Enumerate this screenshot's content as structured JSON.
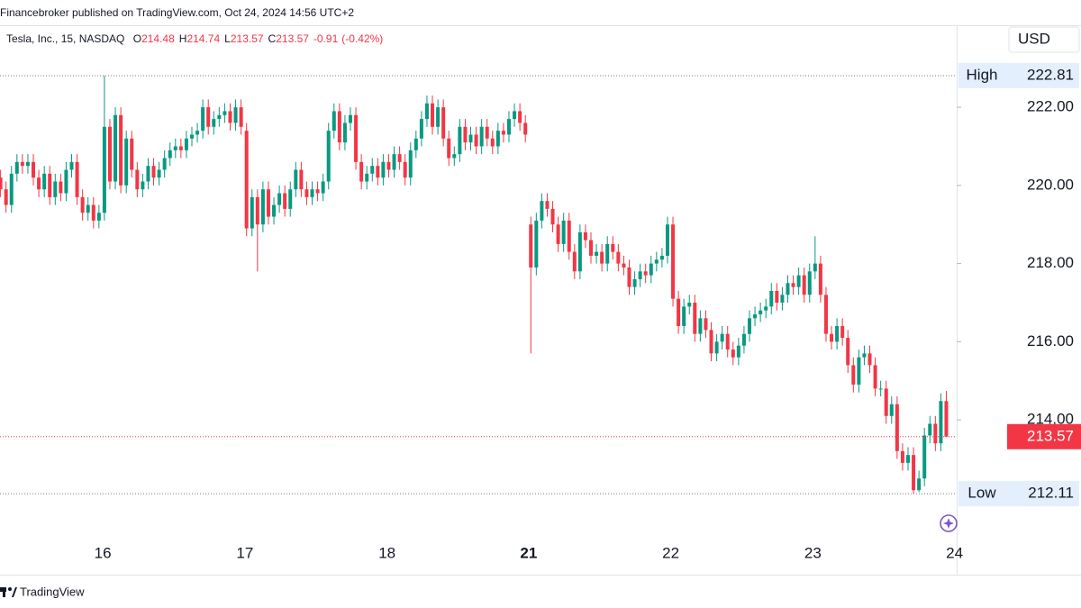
{
  "header": "Financebroker published on TradingView.com, Oct 24, 2024 14:56 UTC+2",
  "footer": "TradingView",
  "chart_data": {
    "type": "candlestick",
    "legend": {
      "symbol": "Tesla, Inc., 15, NASDAQ",
      "fields": [
        {
          "key": "O",
          "value": 214.48
        },
        {
          "key": "H",
          "value": 214.74
        },
        {
          "key": "L",
          "value": 213.57
        },
        {
          "key": "C",
          "value": 213.57
        }
      ],
      "change": -0.91,
      "change_pct": {
        "value": -0.42,
        "label": "(-0.42%)"
      }
    },
    "currency": "USD",
    "high_marker": {
      "label": "High",
      "value": 222.81
    },
    "low_marker": {
      "label": "Low",
      "value": 212.11
    },
    "last": 213.57,
    "up_color": "#089981",
    "down_color": "#f23645",
    "grid": false,
    "ylim": [
      210.96,
      224.1
    ],
    "yticks": [
      {
        "value": 214,
        "label": "214.00"
      },
      {
        "value": 216,
        "label": "216.00"
      },
      {
        "value": 218,
        "label": "218.00"
      },
      {
        "value": 220,
        "label": "220.00"
      },
      {
        "value": 222,
        "label": "222.00"
      }
    ],
    "xlim": [
      -0.1,
      174.9
    ],
    "xticks": [
      {
        "value": 18.7,
        "label": "16"
      },
      {
        "value": 44.7,
        "label": "17"
      },
      {
        "value": 70.7,
        "label": "18"
      },
      {
        "value": 96.6,
        "label": "21",
        "bold": true
      },
      {
        "value": 122.6,
        "label": "22"
      },
      {
        "value": 148.6,
        "label": "23"
      },
      {
        "value": 174.5,
        "label": "24"
      }
    ],
    "open": [
      220.2,
      219.9,
      219.5,
      220.3,
      220.6,
      220.5,
      220.6,
      220.2,
      219.9,
      220.3,
      219.7,
      220.1,
      219.8,
      220.4,
      220.6,
      219.7,
      219.3,
      219.5,
      219.1,
      219.3,
      221.5,
      220.1,
      221.8,
      220.0,
      221.2,
      220.4,
      219.9,
      220.1,
      220.5,
      220.2,
      220.4,
      220.7,
      220.9,
      221.0,
      220.9,
      221.2,
      221.3,
      221.4,
      222.0,
      221.5,
      221.7,
      221.8,
      221.9,
      221.6,
      222.0,
      221.4,
      218.9,
      219.7,
      219.0,
      219.9,
      219.2,
      219.5,
      219.8,
      219.4,
      219.9,
      220.4,
      219.9,
      219.7,
      219.9,
      219.8,
      220.1,
      221.4,
      221.9,
      221.1,
      221.6,
      221.8,
      220.6,
      220.1,
      220.3,
      220.5,
      220.2,
      220.6,
      220.4,
      220.8,
      220.6,
      220.2,
      220.9,
      221.2,
      221.7,
      222.1,
      221.5,
      222.0,
      221.2,
      220.7,
      220.8,
      221.5,
      221.1,
      221.3,
      221.0,
      221.5,
      221.2,
      221.0,
      221.4,
      221.3,
      221.7,
      221.9,
      221.6,
      219.0,
      217.9,
      219.1,
      219.6,
      219.4,
      219.0,
      218.5,
      219.1,
      218.3,
      217.8,
      218.8,
      218.6,
      218.2,
      218.3,
      218.0,
      218.5,
      218.3,
      218.0,
      217.9,
      217.4,
      217.6,
      217.8,
      217.7,
      218.0,
      218.1,
      218.2,
      219.0,
      217.1,
      216.4,
      216.9,
      217.0,
      216.2,
      216.6,
      216.3,
      215.7,
      216.0,
      216.2,
      215.8,
      215.6,
      215.9,
      216.2,
      216.6,
      216.7,
      216.8,
      216.9,
      217.3,
      217.0,
      217.2,
      217.5,
      217.4,
      217.7,
      217.2,
      217.8,
      218.0,
      217.2,
      216.2,
      216.0,
      216.4,
      216.1,
      215.4,
      214.9,
      215.6,
      215.7,
      215.4,
      214.8,
      214.8,
      214.1,
      214.4,
      213.2,
      212.9,
      213.1,
      212.2,
      212.5,
      213.6,
      213.9,
      213.4,
      214.48
    ],
    "high": [
      220.4,
      220.1,
      220.5,
      220.8,
      220.8,
      220.8,
      220.8,
      220.4,
      220.5,
      220.5,
      220.3,
      220.3,
      220.6,
      220.8,
      220.8,
      219.9,
      219.7,
      219.7,
      219.5,
      222.81,
      221.7,
      222.0,
      222.0,
      221.4,
      221.4,
      220.6,
      220.3,
      220.7,
      220.7,
      220.6,
      220.9,
      221.1,
      221.2,
      221.2,
      221.4,
      221.5,
      221.6,
      222.2,
      222.2,
      221.9,
      222.0,
      222.1,
      222.1,
      222.2,
      222.2,
      221.6,
      219.9,
      219.9,
      220.1,
      220.1,
      219.7,
      220.0,
      220.0,
      220.1,
      220.6,
      220.6,
      220.1,
      220.1,
      220.1,
      220.3,
      221.6,
      222.1,
      222.1,
      221.8,
      222.0,
      222.0,
      220.8,
      220.5,
      220.7,
      220.7,
      220.8,
      220.8,
      221.0,
      221.0,
      220.8,
      221.1,
      221.4,
      221.9,
      222.3,
      222.3,
      222.2,
      222.2,
      221.4,
      221.0,
      221.7,
      221.7,
      221.5,
      221.5,
      221.7,
      221.7,
      221.4,
      221.6,
      221.6,
      221.9,
      222.1,
      222.1,
      221.8,
      219.2,
      219.3,
      219.8,
      219.8,
      219.6,
      219.2,
      219.3,
      219.3,
      218.5,
      219.0,
      219.0,
      218.8,
      218.5,
      218.5,
      218.7,
      218.7,
      218.5,
      218.2,
      218.1,
      217.8,
      218.0,
      218.0,
      218.2,
      218.3,
      218.4,
      219.2,
      219.2,
      217.3,
      217.1,
      217.2,
      217.2,
      216.8,
      216.8,
      216.5,
      216.2,
      216.4,
      216.4,
      216.0,
      216.1,
      216.4,
      216.8,
      216.9,
      217.0,
      217.1,
      217.5,
      217.5,
      217.4,
      217.7,
      217.7,
      217.9,
      217.9,
      218.0,
      218.7,
      218.2,
      217.4,
      216.4,
      216.6,
      216.6,
      216.3,
      215.6,
      215.8,
      215.9,
      215.9,
      215.6,
      215.0,
      215.0,
      214.6,
      214.6,
      213.4,
      213.3,
      213.3,
      212.7,
      213.8,
      214.1,
      214.1,
      214.68,
      214.74
    ],
    "low": [
      219.7,
      219.3,
      219.3,
      220.1,
      220.3,
      220.3,
      220.0,
      219.7,
      219.7,
      219.5,
      219.5,
      219.6,
      219.6,
      220.2,
      219.5,
      219.1,
      219.1,
      218.9,
      218.9,
      219.1,
      219.9,
      219.9,
      219.8,
      219.8,
      220.2,
      219.7,
      219.7,
      219.9,
      220.0,
      220.0,
      220.2,
      220.5,
      220.7,
      220.7,
      220.7,
      221.0,
      221.1,
      221.2,
      221.3,
      221.3,
      221.5,
      221.6,
      221.4,
      221.4,
      221.3,
      218.7,
      218.7,
      217.8,
      218.8,
      219.0,
      219.0,
      219.3,
      219.2,
      219.2,
      219.7,
      219.7,
      219.5,
      219.5,
      219.6,
      219.6,
      219.9,
      221.2,
      220.9,
      220.9,
      221.4,
      220.4,
      219.9,
      219.9,
      220.1,
      220.0,
      220.0,
      220.2,
      220.2,
      220.4,
      220.0,
      220.0,
      220.7,
      221.0,
      221.5,
      221.3,
      221.3,
      221.0,
      220.5,
      220.5,
      220.6,
      220.9,
      220.9,
      220.8,
      220.8,
      221.0,
      220.8,
      220.8,
      221.1,
      221.1,
      221.5,
      221.4,
      221.1,
      215.7,
      217.7,
      218.9,
      219.2,
      218.8,
      218.3,
      218.3,
      218.1,
      217.6,
      217.6,
      218.4,
      218.0,
      218.0,
      217.8,
      217.8,
      218.1,
      217.8,
      217.7,
      217.2,
      217.2,
      217.4,
      217.5,
      217.5,
      217.8,
      217.9,
      218.0,
      216.9,
      216.2,
      216.2,
      216.7,
      216.0,
      216.0,
      216.1,
      215.5,
      215.5,
      215.8,
      215.6,
      215.4,
      215.4,
      215.7,
      216.0,
      216.4,
      216.5,
      216.6,
      216.7,
      216.8,
      216.8,
      217.0,
      217.2,
      217.2,
      217.0,
      217.0,
      217.6,
      217.0,
      216.0,
      215.8,
      215.8,
      215.9,
      215.2,
      214.7,
      214.7,
      215.4,
      215.2,
      214.6,
      214.6,
      213.9,
      213.9,
      213.0,
      212.7,
      212.7,
      212.11,
      212.15,
      212.3,
      213.4,
      213.2,
      213.2,
      213.57
    ],
    "close": [
      219.9,
      219.5,
      220.3,
      220.6,
      220.5,
      220.6,
      220.2,
      219.9,
      220.3,
      219.7,
      220.1,
      219.8,
      220.4,
      220.6,
      219.7,
      219.3,
      219.5,
      219.1,
      219.3,
      221.5,
      220.1,
      221.8,
      220.0,
      221.2,
      220.4,
      219.9,
      220.1,
      220.5,
      220.2,
      220.4,
      220.7,
      220.9,
      221.0,
      220.9,
      221.2,
      221.3,
      221.4,
      222.0,
      221.5,
      221.7,
      221.8,
      221.9,
      221.6,
      222.0,
      221.5,
      218.9,
      219.7,
      219.0,
      219.9,
      219.2,
      219.5,
      219.8,
      219.4,
      219.9,
      220.4,
      219.9,
      219.7,
      219.9,
      219.8,
      220.1,
      221.4,
      221.9,
      221.1,
      221.6,
      221.8,
      220.6,
      220.1,
      220.3,
      220.5,
      220.2,
      220.6,
      220.4,
      220.8,
      220.6,
      220.2,
      220.9,
      221.2,
      221.7,
      222.1,
      221.5,
      222.0,
      221.2,
      220.7,
      220.8,
      221.5,
      221.1,
      221.3,
      221.0,
      221.5,
      221.2,
      221.0,
      221.4,
      221.3,
      221.7,
      221.9,
      221.6,
      221.3,
      217.9,
      219.1,
      219.6,
      219.4,
      219.0,
      218.5,
      219.1,
      218.3,
      217.8,
      218.8,
      218.6,
      218.2,
      218.3,
      218.0,
      218.5,
      218.3,
      218.0,
      217.9,
      217.4,
      217.6,
      217.8,
      217.7,
      218.0,
      218.1,
      218.2,
      219.0,
      217.1,
      216.4,
      216.9,
      217.0,
      216.2,
      216.6,
      216.3,
      215.7,
      216.0,
      216.2,
      215.8,
      215.6,
      215.9,
      216.2,
      216.6,
      216.7,
      216.8,
      216.9,
      217.3,
      217.0,
      217.2,
      217.5,
      217.4,
      217.7,
      217.2,
      217.8,
      218.0,
      217.2,
      216.2,
      216.0,
      216.4,
      216.1,
      215.4,
      214.9,
      215.6,
      215.7,
      215.4,
      214.8,
      214.8,
      214.1,
      214.4,
      213.2,
      212.9,
      213.1,
      212.2,
      212.5,
      213.6,
      213.9,
      213.4,
      214.48,
      213.57
    ]
  }
}
